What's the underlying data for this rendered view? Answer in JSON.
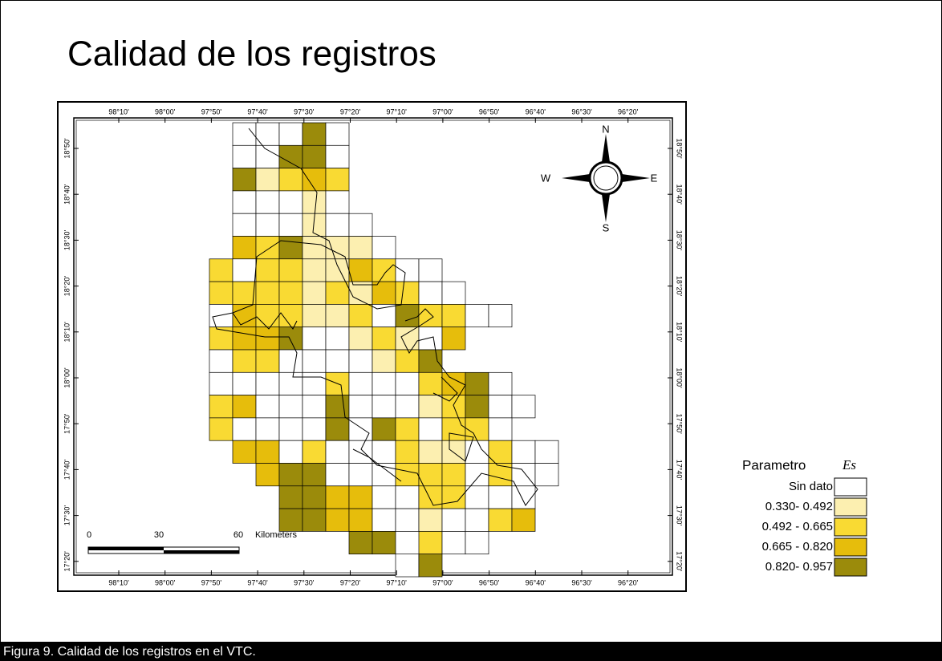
{
  "title": "Calidad de los registros",
  "map": {
    "top_ticks": [
      "98°10'",
      "98°00'",
      "97°50'",
      "97°40'",
      "97°30'",
      "97°20'",
      "97°10'",
      "97°00'",
      "96°50'",
      "96°40'",
      "96°30'",
      "96°20'"
    ],
    "bottom_ticks": [
      "98°10'",
      "98°00'",
      "97°50'",
      "97°40'",
      "97°30'",
      "97°20'",
      "97°10'",
      "97°00'",
      "96°50'",
      "96°40'",
      "96°30'",
      "96°20'"
    ],
    "left_ticks": [
      "18°50'",
      "18°40'",
      "18°30'",
      "18°20'",
      "18°10'",
      "18°00'",
      "17°50'",
      "17°40'",
      "17°30'",
      "17°20'"
    ],
    "right_ticks": [
      "18°50'",
      "18°40'",
      "18°30'",
      "18°20'",
      "18°10'",
      "18°00'",
      "17°50'",
      "17°40'",
      "17°30'",
      "17°20'"
    ],
    "compass": {
      "n": "N",
      "s": "S",
      "e": "E",
      "w": "W"
    },
    "scale": {
      "labels": [
        "0",
        "30",
        "60"
      ],
      "unit": "Kilometers"
    }
  },
  "legend": {
    "title": "Parametro",
    "symbol": "Es",
    "items": [
      {
        "label": "Sin dato",
        "color": "#ffffff"
      },
      {
        "label": "0.330- 0.492",
        "color": "#fcefb0"
      },
      {
        "label": "0.492 - 0.665",
        "color": "#f9da33"
      },
      {
        "label": "0.665 - 0.820",
        "color": "#e6bd0c"
      },
      {
        "label": "0.820- 0.957",
        "color": "#9b8b0b"
      }
    ]
  },
  "caption": "Figura 9. Calidad de los registros en el VTC."
}
